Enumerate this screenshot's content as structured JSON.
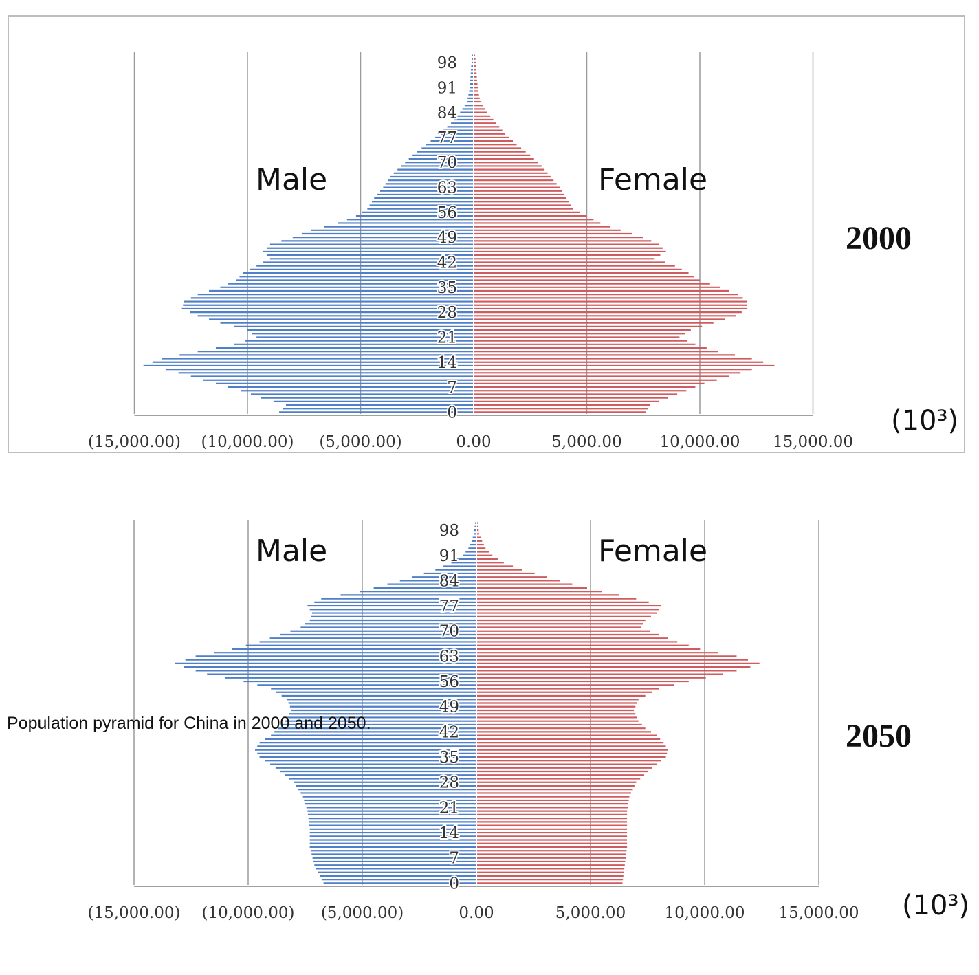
{
  "caption": "Population pyramid for China in 2000 and 2050.",
  "colors": {
    "male": "#4f7fc6",
    "female": "#cf5b5f",
    "grid": "#9a9a9a",
    "axis": "#a0a0a0"
  },
  "chart_data": [
    {
      "type": "bar",
      "orientation": "horizontal-pyramid",
      "title": "2000",
      "unit_label": "(10³)",
      "series_labels": {
        "male": "Male",
        "female": "Female"
      },
      "x_tick_labels": [
        "(15,000.00)",
        "(10,000.00)",
        "(5,000.00)",
        "0.00",
        "5,000.00",
        "10,000.00",
        "15,000.00"
      ],
      "xlim": [
        -15000,
        15000
      ],
      "y_tick_labels": [
        "98",
        "91",
        "84",
        "77",
        "70",
        "63",
        "56",
        "49",
        "42",
        "35",
        "28",
        "21",
        "14",
        "7",
        "0"
      ],
      "ages": {
        "start": 0,
        "end": 100
      },
      "male_profile": [
        [
          0,
          8600
        ],
        [
          2,
          8300
        ],
        [
          4,
          9400
        ],
        [
          6,
          10300
        ],
        [
          8,
          11400
        ],
        [
          10,
          12500
        ],
        [
          12,
          13600
        ],
        [
          13,
          14600
        ],
        [
          15,
          13800
        ],
        [
          17,
          12200
        ],
        [
          19,
          10600
        ],
        [
          21,
          9600
        ],
        [
          23,
          10000
        ],
        [
          25,
          11200
        ],
        [
          27,
          12200
        ],
        [
          29,
          12900
        ],
        [
          31,
          12800
        ],
        [
          33,
          12200
        ],
        [
          35,
          11200
        ],
        [
          37,
          10500
        ],
        [
          39,
          10200
        ],
        [
          41,
          9600
        ],
        [
          43,
          9000
        ],
        [
          45,
          9300
        ],
        [
          47,
          9000
        ],
        [
          49,
          8000
        ],
        [
          51,
          7200
        ],
        [
          53,
          6000
        ],
        [
          55,
          5200
        ],
        [
          57,
          4700
        ],
        [
          60,
          4400
        ],
        [
          63,
          4000
        ],
        [
          66,
          3700
        ],
        [
          69,
          3200
        ],
        [
          72,
          2700
        ],
        [
          75,
          2100
        ],
        [
          78,
          1500
        ],
        [
          81,
          1000
        ],
        [
          84,
          600
        ],
        [
          87,
          300
        ],
        [
          90,
          200
        ],
        [
          93,
          150
        ],
        [
          96,
          120
        ],
        [
          99,
          80
        ],
        [
          100,
          60
        ]
      ],
      "female_profile": [
        [
          0,
          7600
        ],
        [
          2,
          7800
        ],
        [
          4,
          8600
        ],
        [
          6,
          9400
        ],
        [
          8,
          10200
        ],
        [
          10,
          11300
        ],
        [
          12,
          12300
        ],
        [
          13,
          13300
        ],
        [
          15,
          12300
        ],
        [
          17,
          10800
        ],
        [
          19,
          9800
        ],
        [
          21,
          9100
        ],
        [
          23,
          9600
        ],
        [
          25,
          10600
        ],
        [
          27,
          11600
        ],
        [
          29,
          12100
        ],
        [
          31,
          12100
        ],
        [
          33,
          11700
        ],
        [
          35,
          10900
        ],
        [
          37,
          10000
        ],
        [
          39,
          9500
        ],
        [
          41,
          8900
        ],
        [
          43,
          8000
        ],
        [
          45,
          8500
        ],
        [
          47,
          8200
        ],
        [
          49,
          7500
        ],
        [
          51,
          6500
        ],
        [
          53,
          5600
        ],
        [
          55,
          5000
        ],
        [
          57,
          4400
        ],
        [
          60,
          4100
        ],
        [
          63,
          3800
        ],
        [
          66,
          3400
        ],
        [
          69,
          3000
        ],
        [
          72,
          2500
        ],
        [
          75,
          1900
        ],
        [
          78,
          1400
        ],
        [
          81,
          1000
        ],
        [
          84,
          600
        ],
        [
          87,
          300
        ],
        [
          90,
          200
        ],
        [
          93,
          150
        ],
        [
          96,
          120
        ],
        [
          99,
          80
        ],
        [
          100,
          60
        ]
      ]
    },
    {
      "type": "bar",
      "orientation": "horizontal-pyramid",
      "title": "2050",
      "unit_label": "(10³)",
      "series_labels": {
        "male": "Male",
        "female": "Female"
      },
      "x_tick_labels": [
        "(15,000.00)",
        "(10,000.00)",
        "(5,000.00)",
        "0.00",
        "5,000.00",
        "10,000.00",
        "15,000.00"
      ],
      "xlim": [
        -15000,
        15000
      ],
      "y_tick_labels": [
        "98",
        "91",
        "84",
        "77",
        "70",
        "63",
        "56",
        "49",
        "42",
        "35",
        "28",
        "21",
        "14",
        "7",
        "0"
      ],
      "ages": {
        "start": 0,
        "end": 100
      },
      "male_profile": [
        [
          0,
          6700
        ],
        [
          5,
          7100
        ],
        [
          10,
          7300
        ],
        [
          15,
          7300
        ],
        [
          20,
          7400
        ],
        [
          24,
          7600
        ],
        [
          28,
          8000
        ],
        [
          32,
          8800
        ],
        [
          35,
          9500
        ],
        [
          37,
          9700
        ],
        [
          39,
          9500
        ],
        [
          41,
          9000
        ],
        [
          43,
          8700
        ],
        [
          45,
          8400
        ],
        [
          48,
          8100
        ],
        [
          51,
          8300
        ],
        [
          54,
          9000
        ],
        [
          56,
          10200
        ],
        [
          58,
          11800
        ],
        [
          60,
          12800
        ],
        [
          61,
          13200
        ],
        [
          63,
          12300
        ],
        [
          65,
          10700
        ],
        [
          67,
          9500
        ],
        [
          69,
          8600
        ],
        [
          71,
          7700
        ],
        [
          73,
          7300
        ],
        [
          75,
          7200
        ],
        [
          77,
          7400
        ],
        [
          79,
          6800
        ],
        [
          81,
          5100
        ],
        [
          83,
          3900
        ],
        [
          85,
          2800
        ],
        [
          87,
          1800
        ],
        [
          89,
          1100
        ],
        [
          91,
          600
        ],
        [
          93,
          350
        ],
        [
          95,
          200
        ],
        [
          97,
          120
        ],
        [
          100,
          60
        ]
      ],
      "female_profile": [
        [
          0,
          6400
        ],
        [
          5,
          6500
        ],
        [
          10,
          6600
        ],
        [
          15,
          6600
        ],
        [
          20,
          6600
        ],
        [
          24,
          6700
        ],
        [
          28,
          7000
        ],
        [
          32,
          7700
        ],
        [
          35,
          8300
        ],
        [
          37,
          8400
        ],
        [
          39,
          8200
        ],
        [
          41,
          7900
        ],
        [
          43,
          7400
        ],
        [
          45,
          7100
        ],
        [
          48,
          6900
        ],
        [
          51,
          7100
        ],
        [
          54,
          8000
        ],
        [
          56,
          9300
        ],
        [
          58,
          10800
        ],
        [
          60,
          12000
        ],
        [
          61,
          12400
        ],
        [
          63,
          11400
        ],
        [
          65,
          9800
        ],
        [
          67,
          8800
        ],
        [
          69,
          8000
        ],
        [
          71,
          7200
        ],
        [
          73,
          7400
        ],
        [
          75,
          7900
        ],
        [
          77,
          8100
        ],
        [
          79,
          7000
        ],
        [
          81,
          5500
        ],
        [
          83,
          4200
        ],
        [
          85,
          3100
        ],
        [
          87,
          2000
        ],
        [
          89,
          1200
        ],
        [
          91,
          700
        ],
        [
          93,
          400
        ],
        [
          95,
          250
        ],
        [
          97,
          120
        ],
        [
          100,
          60
        ]
      ]
    }
  ]
}
